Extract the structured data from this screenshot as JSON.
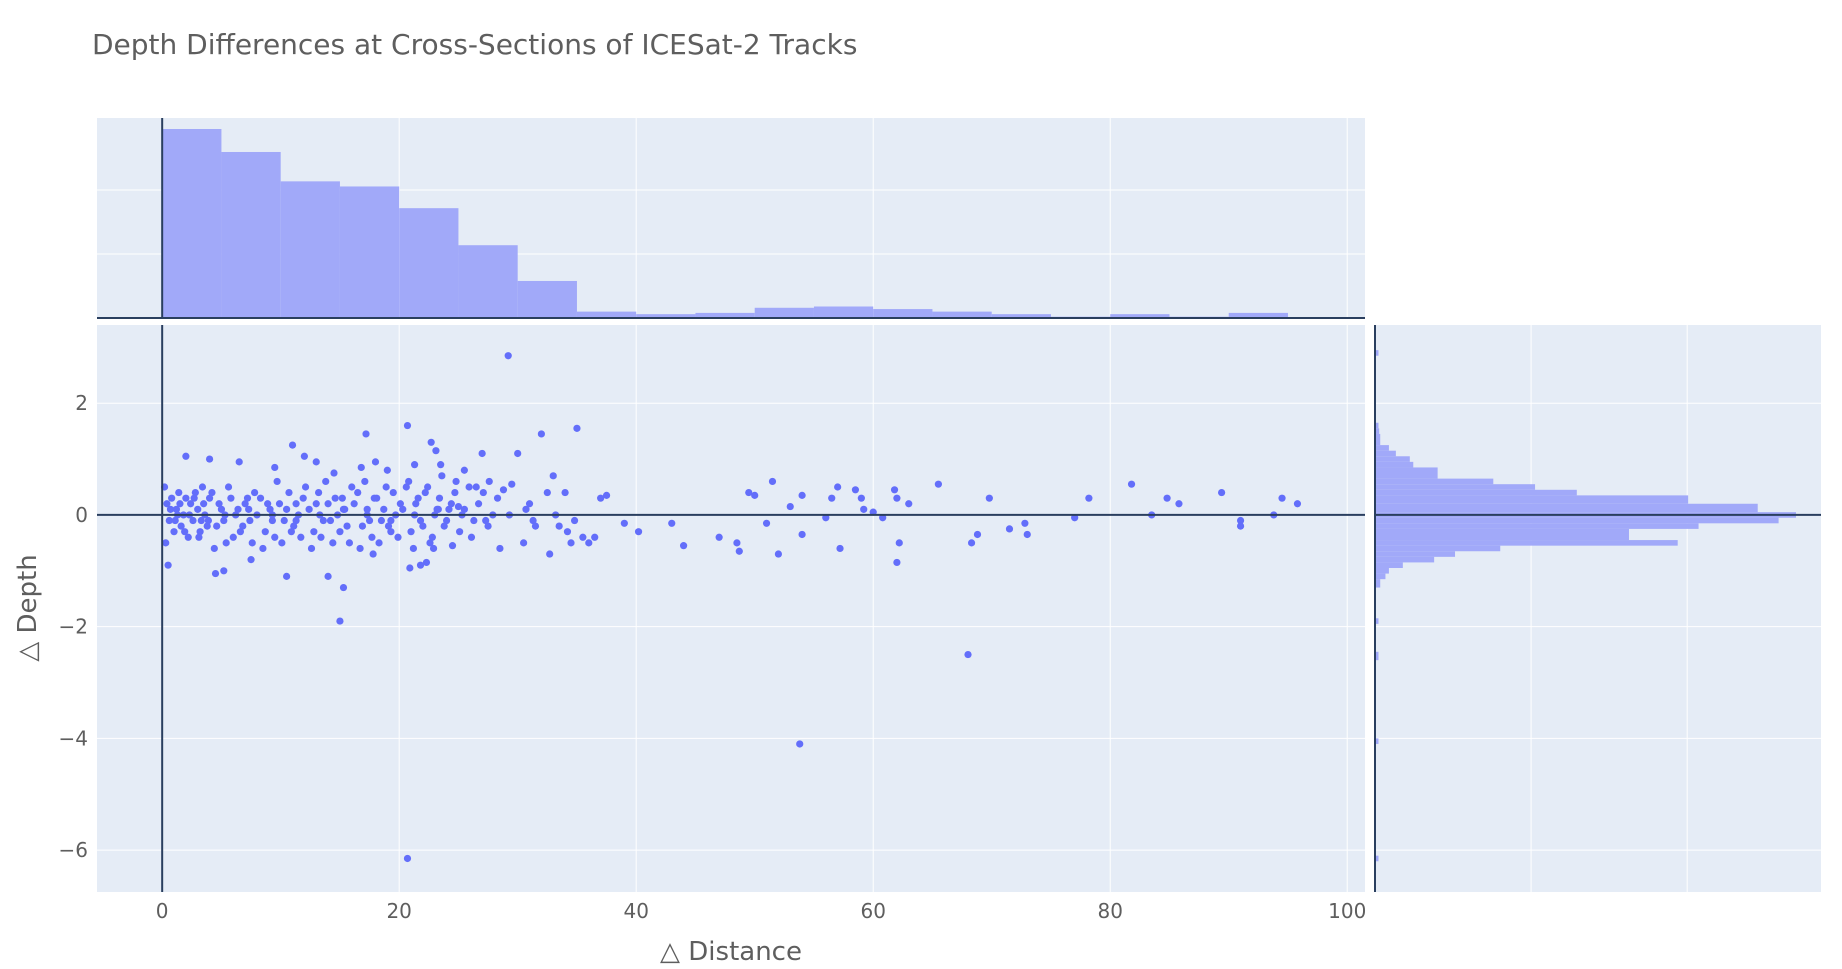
{
  "chart_data": {
    "type": "scatter",
    "title": "Depth Differences at Cross-Sections of ICESat-2 Tracks",
    "xlabel": "△ Distance",
    "ylabel": "△ Depth",
    "xlim": [
      -5.5,
      101.5
    ],
    "ylim": [
      -6.75,
      3.4
    ],
    "xticks": [
      0,
      20,
      40,
      60,
      80,
      100
    ],
    "yticks": [
      2,
      0,
      -2,
      -4,
      -6
    ],
    "ytick_labels": [
      "2",
      "0",
      "−2",
      "−4",
      "−6"
    ],
    "grid": true,
    "marginal_x": "histogram",
    "marginal_y": "histogram",
    "colors": {
      "plot_bg": "#E5ECF6",
      "point": "#636EFA",
      "hist_fill": "#A1A9F9",
      "zero_line": "#2A3F5F",
      "grid": "#FFFFFF",
      "text": "#5E5E5E"
    },
    "x_hist": {
      "bin_width": 5,
      "bin_starts": [
        0,
        5,
        10,
        15,
        20,
        25,
        30,
        35,
        40,
        45,
        50,
        55,
        60,
        65,
        70,
        75,
        80,
        85,
        90
      ],
      "counts": [
        148,
        130,
        107,
        103,
        86,
        57,
        29,
        5,
        3,
        4,
        8,
        9,
        7,
        5,
        3,
        1,
        3,
        1,
        4
      ]
    },
    "y_hist": {
      "bins": [
        {
          "y0": 2.85,
          "y1": 2.95,
          "count": 1
        },
        {
          "y0": 1.65,
          "y1": 1.55,
          "count": 1
        },
        {
          "y0": 1.55,
          "y1": 1.45,
          "count": 1.2
        },
        {
          "y0": 1.45,
          "y1": 1.25,
          "count": 1.5
        },
        {
          "y0": 1.25,
          "y1": 1.15,
          "count": 4
        },
        {
          "y0": 1.15,
          "y1": 1.05,
          "count": 6
        },
        {
          "y0": 1.05,
          "y1": 0.95,
          "count": 10
        },
        {
          "y0": 0.95,
          "y1": 0.85,
          "count": 11
        },
        {
          "y0": 0.85,
          "y1": 0.65,
          "count": 18
        },
        {
          "y0": 0.65,
          "y1": 0.55,
          "count": 34
        },
        {
          "y0": 0.55,
          "y1": 0.45,
          "count": 46
        },
        {
          "y0": 0.45,
          "y1": 0.35,
          "count": 58
        },
        {
          "y0": 0.35,
          "y1": 0.2,
          "count": 90
        },
        {
          "y0": 0.2,
          "y1": 0.05,
          "count": 110
        },
        {
          "y0": 0.05,
          "y1": -0.05,
          "count": 121
        },
        {
          "y0": -0.05,
          "y1": -0.15,
          "count": 116
        },
        {
          "y0": -0.15,
          "y1": -0.25,
          "count": 93
        },
        {
          "y0": -0.25,
          "y1": -0.45,
          "count": 73
        },
        {
          "y0": -0.45,
          "y1": -0.55,
          "count": 87
        },
        {
          "y0": -0.55,
          "y1": -0.65,
          "count": 36
        },
        {
          "y0": -0.65,
          "y1": -0.75,
          "count": 23
        },
        {
          "y0": -0.75,
          "y1": -0.85,
          "count": 17
        },
        {
          "y0": -0.85,
          "y1": -0.95,
          "count": 8
        },
        {
          "y0": -0.95,
          "y1": -1.05,
          "count": 4
        },
        {
          "y0": -1.05,
          "y1": -1.15,
          "count": 3
        },
        {
          "y0": -1.15,
          "y1": -1.3,
          "count": 1.5
        },
        {
          "y0": -1.85,
          "y1": -1.95,
          "count": 1
        },
        {
          "y0": -2.45,
          "y1": -2.6,
          "count": 1
        },
        {
          "y0": -4.0,
          "y1": -4.1,
          "count": 1
        },
        {
          "y0": -6.1,
          "y1": -6.2,
          "count": 1
        }
      ]
    },
    "points": [
      [
        0.2,
        0.5
      ],
      [
        0.4,
        0.2
      ],
      [
        0.6,
        -0.1
      ],
      [
        0.8,
        0.3
      ],
      [
        1.0,
        -0.3
      ],
      [
        1.2,
        0.1
      ],
      [
        1.4,
        0.4
      ],
      [
        1.6,
        -0.2
      ],
      [
        1.8,
        0.0
      ],
      [
        2.0,
        0.3
      ],
      [
        2.2,
        -0.4
      ],
      [
        2.4,
        0.2
      ],
      [
        2.6,
        -0.1
      ],
      [
        2.8,
        0.4
      ],
      [
        3.0,
        0.1
      ],
      [
        3.2,
        -0.3
      ],
      [
        3.4,
        0.5
      ],
      [
        3.6,
        0.0
      ],
      [
        3.8,
        -0.2
      ],
      [
        4.0,
        0.3
      ],
      [
        0.3,
        -0.5
      ],
      [
        0.7,
        0.1
      ],
      [
        1.1,
        -0.1
      ],
      [
        1.5,
        0.2
      ],
      [
        1.9,
        -0.3
      ],
      [
        2.3,
        0.0
      ],
      [
        2.7,
        0.3
      ],
      [
        3.1,
        -0.4
      ],
      [
        3.5,
        0.2
      ],
      [
        3.9,
        -0.1
      ],
      [
        4.2,
        0.4
      ],
      [
        4.6,
        -0.2
      ],
      [
        5.0,
        0.1
      ],
      [
        5.4,
        -0.5
      ],
      [
        5.8,
        0.3
      ],
      [
        6.2,
        0.0
      ],
      [
        6.6,
        -0.3
      ],
      [
        7.0,
        0.2
      ],
      [
        7.4,
        -0.1
      ],
      [
        7.8,
        0.4
      ],
      [
        4.4,
        -0.6
      ],
      [
        4.8,
        0.2
      ],
      [
        5.2,
        -0.1
      ],
      [
        5.6,
        0.5
      ],
      [
        6.0,
        -0.4
      ],
      [
        6.4,
        0.1
      ],
      [
        6.8,
        -0.2
      ],
      [
        7.2,
        0.3
      ],
      [
        7.6,
        -0.5
      ],
      [
        8.0,
        0.0
      ],
      [
        8.3,
        0.3
      ],
      [
        8.7,
        -0.3
      ],
      [
        9.1,
        0.1
      ],
      [
        9.5,
        -0.4
      ],
      [
        9.9,
        0.2
      ],
      [
        10.3,
        -0.1
      ],
      [
        10.7,
        0.4
      ],
      [
        11.1,
        -0.2
      ],
      [
        11.5,
        0.0
      ],
      [
        11.9,
        0.3
      ],
      [
        8.5,
        -0.6
      ],
      [
        8.9,
        0.2
      ],
      [
        9.3,
        -0.1
      ],
      [
        9.7,
        0.6
      ],
      [
        10.1,
        -0.5
      ],
      [
        10.5,
        0.1
      ],
      [
        10.9,
        -0.3
      ],
      [
        11.3,
        0.2
      ],
      [
        11.7,
        -0.4
      ],
      [
        12.1,
        0.5
      ],
      [
        12.4,
        0.1
      ],
      [
        12.8,
        -0.3
      ],
      [
        13.2,
        0.4
      ],
      [
        13.6,
        -0.1
      ],
      [
        14.0,
        0.2
      ],
      [
        14.4,
        -0.5
      ],
      [
        14.8,
        0.0
      ],
      [
        15.2,
        0.3
      ],
      [
        15.6,
        -0.2
      ],
      [
        16.0,
        0.5
      ],
      [
        12.6,
        -0.6
      ],
      [
        13.0,
        0.2
      ],
      [
        13.4,
        -0.4
      ],
      [
        13.8,
        0.6
      ],
      [
        14.2,
        -0.1
      ],
      [
        14.6,
        0.3
      ],
      [
        15.0,
        -0.3
      ],
      [
        15.4,
        0.1
      ],
      [
        15.8,
        -0.5
      ],
      [
        16.2,
        0.2
      ],
      [
        16.5,
        0.4
      ],
      [
        16.9,
        -0.2
      ],
      [
        17.3,
        0.1
      ],
      [
        17.7,
        -0.4
      ],
      [
        18.1,
        0.3
      ],
      [
        18.5,
        -0.1
      ],
      [
        18.9,
        0.5
      ],
      [
        19.3,
        -0.3
      ],
      [
        19.7,
        0.0
      ],
      [
        20.1,
        0.2
      ],
      [
        16.7,
        -0.6
      ],
      [
        17.1,
        0.6
      ],
      [
        17.5,
        -0.1
      ],
      [
        17.9,
        0.3
      ],
      [
        18.3,
        -0.5
      ],
      [
        18.7,
        0.1
      ],
      [
        19.1,
        -0.2
      ],
      [
        19.5,
        0.4
      ],
      [
        19.9,
        -0.4
      ],
      [
        20.3,
        0.1
      ],
      [
        20.6,
        0.5
      ],
      [
        21.0,
        -0.3
      ],
      [
        21.4,
        0.2
      ],
      [
        21.8,
        -0.1
      ],
      [
        22.2,
        0.4
      ],
      [
        22.6,
        -0.5
      ],
      [
        23.0,
        0.0
      ],
      [
        23.4,
        0.3
      ],
      [
        23.8,
        -0.2
      ],
      [
        24.2,
        0.1
      ],
      [
        20.8,
        0.6
      ],
      [
        21.2,
        -0.6
      ],
      [
        21.6,
        0.3
      ],
      [
        22.0,
        -0.2
      ],
      [
        22.4,
        0.5
      ],
      [
        22.8,
        -0.4
      ],
      [
        23.2,
        0.1
      ],
      [
        23.6,
        0.7
      ],
      [
        24.0,
        -0.1
      ],
      [
        24.4,
        0.2
      ],
      [
        24.7,
        0.4
      ],
      [
        25.1,
        -0.3
      ],
      [
        25.5,
        0.1
      ],
      [
        25.9,
        0.5
      ],
      [
        26.3,
        -0.1
      ],
      [
        26.7,
        0.2
      ],
      [
        27.1,
        0.4
      ],
      [
        27.5,
        -0.2
      ],
      [
        27.9,
        0.0
      ],
      [
        28.3,
        0.3
      ],
      [
        0.5,
        -0.9
      ],
      [
        2.0,
        1.05
      ],
      [
        4.0,
        1.0
      ],
      [
        6.5,
        0.95
      ],
      [
        4.5,
        -1.05
      ],
      [
        5.2,
        -1.0
      ],
      [
        7.5,
        -0.8
      ],
      [
        9.5,
        0.85
      ],
      [
        10.5,
        -1.1
      ],
      [
        11.0,
        1.25
      ],
      [
        12.0,
        1.05
      ],
      [
        13.0,
        0.95
      ],
      [
        14.0,
        -1.1
      ],
      [
        14.5,
        0.75
      ],
      [
        15.3,
        -1.3
      ],
      [
        15.0,
        -1.9
      ],
      [
        16.8,
        0.85
      ],
      [
        17.2,
        1.45
      ],
      [
        18.0,
        0.95
      ],
      [
        19.0,
        0.8
      ],
      [
        20.7,
        1.6
      ],
      [
        21.3,
        0.9
      ],
      [
        22.7,
        1.3
      ],
      [
        23.1,
        1.15
      ],
      [
        20.9,
        -0.95
      ],
      [
        21.8,
        -0.9
      ],
      [
        22.3,
        -0.85
      ],
      [
        23.5,
        0.9
      ],
      [
        24.8,
        0.6
      ],
      [
        25.5,
        0.8
      ],
      [
        26.5,
        0.5
      ],
      [
        27.0,
        1.1
      ],
      [
        27.6,
        0.6
      ],
      [
        28.5,
        -0.6
      ],
      [
        29.2,
        2.85
      ],
      [
        29.5,
        0.55
      ],
      [
        30.0,
        1.1
      ],
      [
        30.5,
        -0.5
      ],
      [
        31.0,
        0.2
      ],
      [
        31.5,
        -0.2
      ],
      [
        32.0,
        1.45
      ],
      [
        32.5,
        0.4
      ],
      [
        33.0,
        0.7
      ],
      [
        33.5,
        -0.2
      ],
      [
        34.0,
        0.4
      ],
      [
        34.5,
        -0.5
      ],
      [
        35.0,
        1.55
      ],
      [
        35.5,
        -0.4
      ],
      [
        36.0,
        -0.5
      ],
      [
        36.5,
        -0.4
      ],
      [
        30.7,
        0.1
      ],
      [
        31.3,
        -0.1
      ],
      [
        32.7,
        -0.7
      ],
      [
        33.2,
        0.0
      ],
      [
        34.2,
        -0.3
      ],
      [
        34.8,
        -0.1
      ],
      [
        37.0,
        0.3
      ],
      [
        37.5,
        0.35
      ],
      [
        39.0,
        -0.15
      ],
      [
        40.2,
        -0.3
      ],
      [
        43.0,
        -0.15
      ],
      [
        44.0,
        -0.55
      ],
      [
        47.0,
        -0.4
      ],
      [
        48.5,
        -0.5
      ],
      [
        48.7,
        -0.65
      ],
      [
        49.5,
        0.4
      ],
      [
        50.0,
        0.35
      ],
      [
        51.0,
        -0.15
      ],
      [
        51.5,
        0.6
      ],
      [
        52.0,
        -0.7
      ],
      [
        53.0,
        0.15
      ],
      [
        53.8,
        -4.1
      ],
      [
        54.0,
        0.35
      ],
      [
        54.0,
        -0.35
      ],
      [
        56.0,
        -0.05
      ],
      [
        56.5,
        0.3
      ],
      [
        57.0,
        0.5
      ],
      [
        57.2,
        -0.6
      ],
      [
        58.5,
        0.45
      ],
      [
        59.0,
        0.3
      ],
      [
        59.2,
        0.1
      ],
      [
        60.0,
        0.05
      ],
      [
        60.8,
        -0.05
      ],
      [
        61.8,
        0.45
      ],
      [
        62.0,
        0.3
      ],
      [
        62.0,
        -0.85
      ],
      [
        62.2,
        -0.5
      ],
      [
        63.0,
        0.2
      ],
      [
        65.5,
        0.55
      ],
      [
        68.0,
        -2.5
      ],
      [
        68.3,
        -0.5
      ],
      [
        68.8,
        -0.35
      ],
      [
        69.8,
        0.3
      ],
      [
        71.5,
        -0.25
      ],
      [
        72.8,
        -0.15
      ],
      [
        73.0,
        -0.35
      ],
      [
        77.0,
        -0.05
      ],
      [
        78.2,
        0.3
      ],
      [
        81.8,
        0.55
      ],
      [
        83.5,
        0.0
      ],
      [
        84.8,
        0.3
      ],
      [
        85.8,
        0.2
      ],
      [
        89.4,
        0.4
      ],
      [
        91.0,
        -0.1
      ],
      [
        91.0,
        -0.2
      ],
      [
        93.8,
        0.0
      ],
      [
        94.5,
        0.3
      ],
      [
        95.8,
        0.2
      ],
      [
        20.7,
        -6.15
      ],
      [
        17.8,
        -0.7
      ],
      [
        1.3,
        0.0
      ],
      [
        3.3,
        -0.1
      ],
      [
        5.3,
        0.0
      ],
      [
        7.3,
        0.1
      ],
      [
        9.3,
        0.0
      ],
      [
        11.3,
        -0.1
      ],
      [
        13.3,
        0.0
      ],
      [
        15.3,
        0.1
      ],
      [
        17.3,
        0.0
      ],
      [
        19.3,
        -0.1
      ],
      [
        21.3,
        0.0
      ],
      [
        23.3,
        0.1
      ],
      [
        25.3,
        0.0
      ],
      [
        27.3,
        -0.1
      ],
      [
        29.3,
        0.0
      ],
      [
        28.8,
        0.45
      ],
      [
        26.1,
        -0.4
      ],
      [
        25.0,
        0.15
      ],
      [
        24.5,
        -0.55
      ],
      [
        22.9,
        -0.6
      ]
    ]
  }
}
